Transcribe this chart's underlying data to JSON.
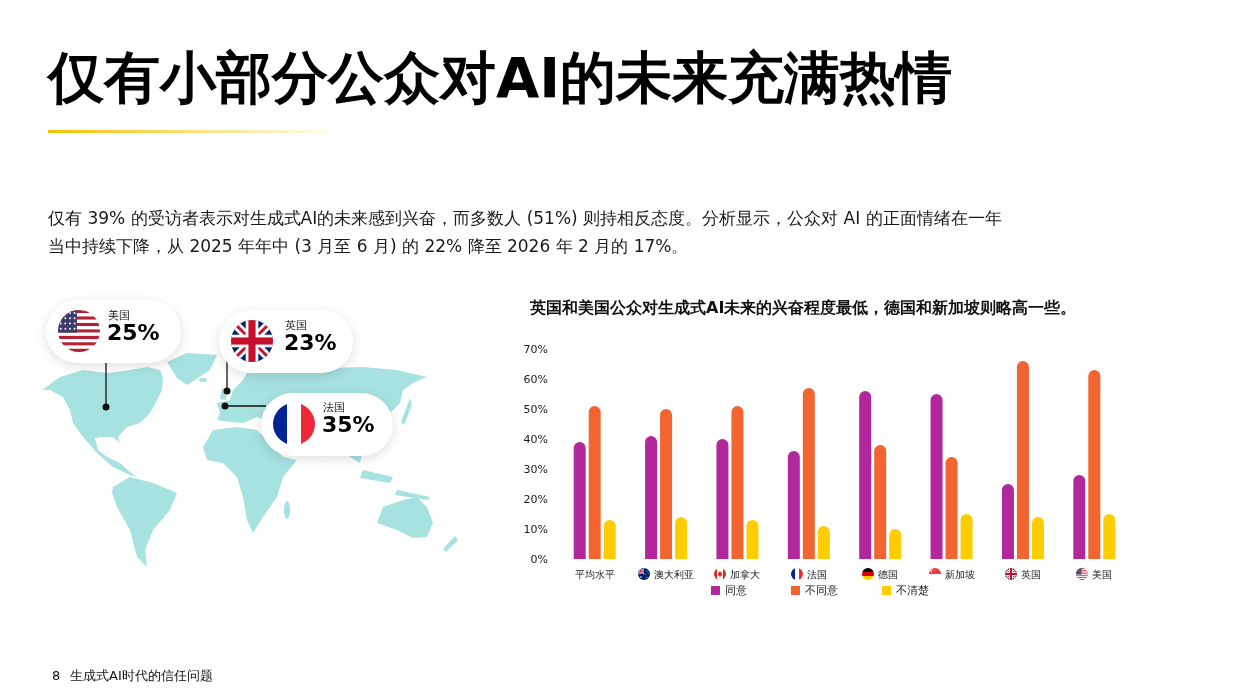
{
  "chart_data": [
    {
      "type": "other",
      "title": "仅有小部分公众对AI的未来充满热情",
      "subtitle": "仅有 39% 的受访者表示对生成式AI的未来感到兴奋，而多数人 (51%) 则持相反态度。分析显示，公众对 AI 的正面情绪在一年当中持续下降，从 2025 年年中 (3 月至 6 月) 的 22% 降至 2026 年 2 月的 17%。",
      "annotations": [
        "美国",
        "25%",
        "英国",
        "23%",
        "法国",
        "35%",
        "8",
        "生成式AI时代的信任问题"
      ]
    },
    {
      "type": "bar",
      "title": "英国和美国公众对生成式AI未来的兴奋程度最低，德国和新加坡则略高一些。",
      "categories": [
        "平均水平",
        "澳大利亚",
        "加拿大",
        "法国",
        "德国",
        "新加坡",
        "英国",
        "美国"
      ],
      "series": [
        {
          "name": "同意",
          "color": "#b3279d",
          "values": [
            39,
            41,
            40,
            36,
            56,
            55,
            25,
            28
          ]
        },
        {
          "name": "不同意",
          "color": "#f26430",
          "values": [
            51,
            50,
            51,
            57,
            38,
            34,
            66,
            63
          ]
        },
        {
          "name": "不清楚",
          "color": "#ffcc00",
          "values": [
            13,
            14,
            13,
            11,
            10,
            15,
            14,
            15
          ]
        }
      ],
      "ylim": [
        0,
        70
      ],
      "yticks": [
        {
          "value": 0,
          "label": "0%"
        },
        {
          "value": 10,
          "label": "10%"
        },
        {
          "value": 20,
          "label": "20%"
        },
        {
          "value": 30,
          "label": "30%"
        },
        {
          "value": 40,
          "label": "40%"
        },
        {
          "value": 50,
          "label": "50%"
        },
        {
          "value": 60,
          "label": "60%"
        },
        {
          "value": 70,
          "label": "70%"
        }
      ],
      "legend": "bottom"
    }
  ]
}
